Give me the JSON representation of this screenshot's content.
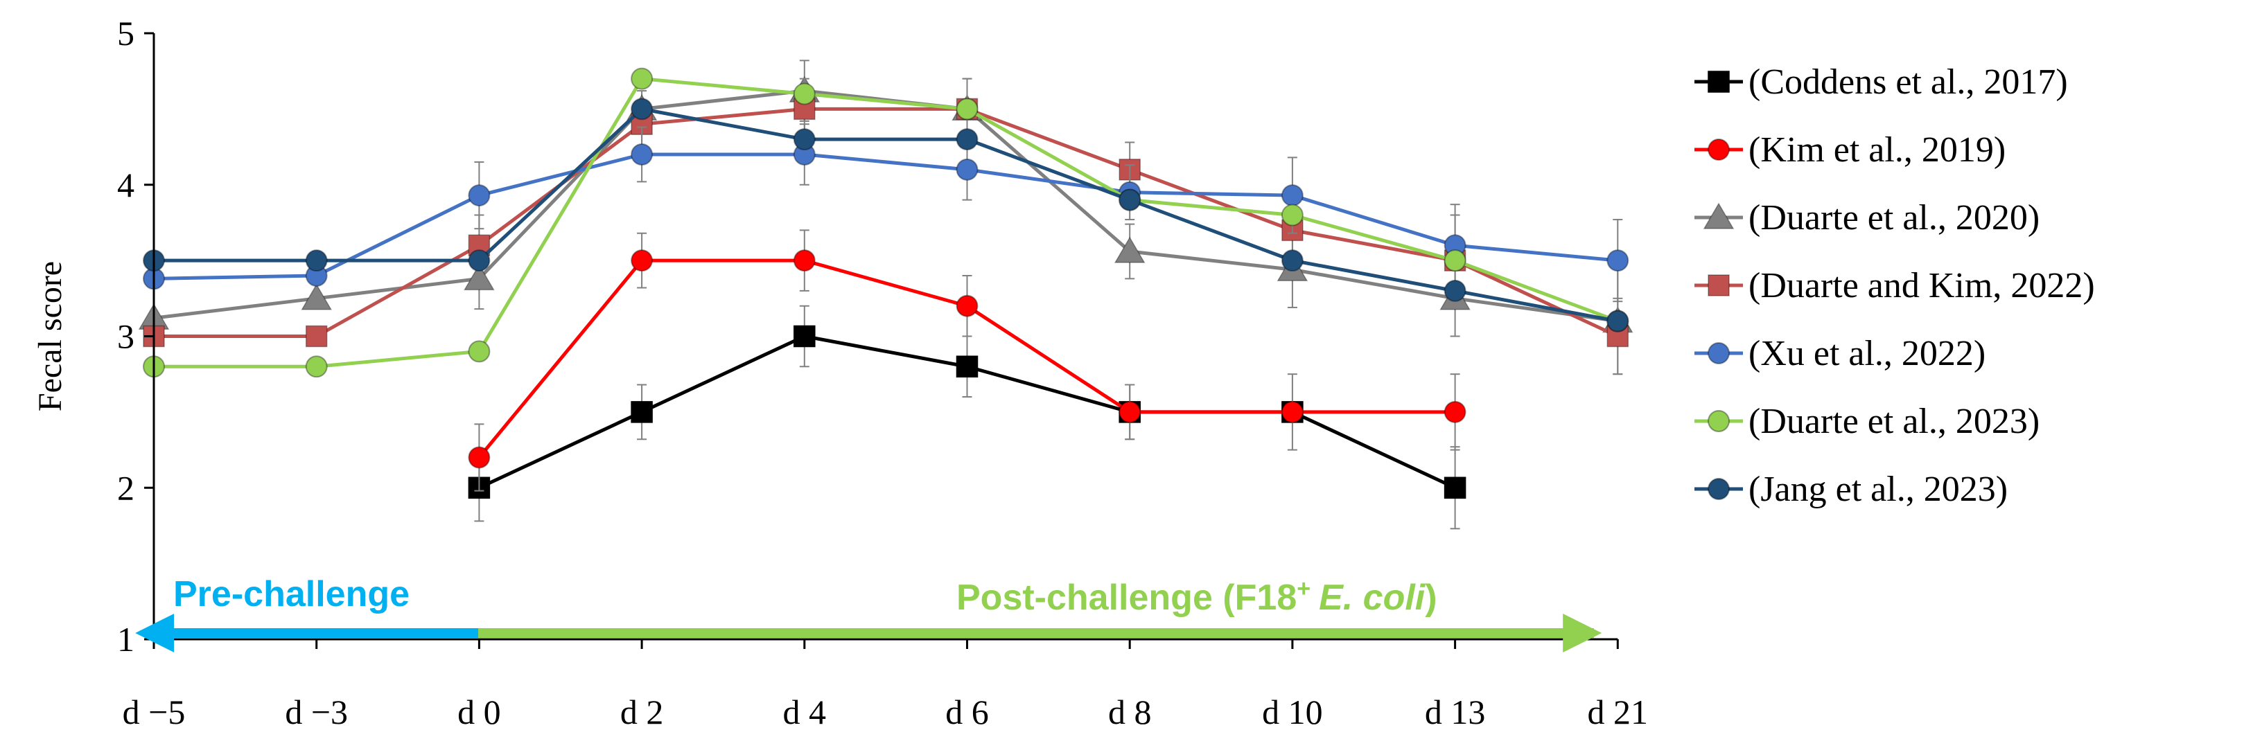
{
  "chart_data": {
    "type": "line",
    "title": "",
    "xlabel": "",
    "ylabel": "Fecal score",
    "ylim": [
      1,
      5
    ],
    "yticks": [
      "1",
      "2",
      "3",
      "4",
      "5"
    ],
    "categories": [
      "d −5",
      "d −3",
      "d 0",
      "d 2",
      "d 4",
      "d 6",
      "d 8",
      "d 10",
      "d 13",
      "d 21"
    ],
    "grid": false,
    "legend_position": "right",
    "series": [
      {
        "name": "(Coddens et al., 2017)",
        "color": "#000000",
        "marker": "square",
        "values": [
          null,
          null,
          2.0,
          2.5,
          3.0,
          2.8,
          2.5,
          2.5,
          2.0,
          null
        ],
        "errors": [
          null,
          null,
          0.22,
          0.18,
          0.2,
          0.2,
          0.18,
          null,
          0.27,
          null
        ]
      },
      {
        "name": "(Kim et al., 2019)",
        "color": "#ff0000",
        "marker": "circle",
        "values": [
          null,
          null,
          2.2,
          3.5,
          3.5,
          3.2,
          2.5,
          2.5,
          2.5,
          null
        ],
        "errors": [
          null,
          null,
          0.22,
          0.18,
          0.2,
          0.2,
          0.18,
          0.25,
          0.25,
          null
        ]
      },
      {
        "name": "(Duarte et al., 2020)",
        "color": "#808080",
        "marker": "triangle",
        "values": [
          3.12,
          3.25,
          3.38,
          4.5,
          4.62,
          4.5,
          3.56,
          3.44,
          3.25,
          3.1
        ],
        "errors": [
          null,
          null,
          0.2,
          0.12,
          0.2,
          0.2,
          0.18,
          0.25,
          0.25,
          0.35
        ]
      },
      {
        "name": "(Duarte and Kim, 2022)",
        "color": "#c0504d",
        "marker": "square",
        "values": [
          3.0,
          3.0,
          3.6,
          4.4,
          4.5,
          4.5,
          4.1,
          3.7,
          3.5,
          3.0
        ],
        "errors": [
          null,
          null,
          0.2,
          0.15,
          0.2,
          0.2,
          0.18,
          0.25,
          0.3,
          0.25
        ]
      },
      {
        "name": "(Xu et al., 2022)",
        "color": "#4472c4",
        "marker": "circle",
        "values": [
          3.38,
          3.4,
          3.93,
          4.2,
          4.2,
          4.1,
          3.95,
          3.93,
          3.6,
          3.5
        ],
        "errors": [
          null,
          null,
          0.22,
          0.18,
          0.2,
          0.2,
          0.18,
          0.25,
          0.27,
          0.27
        ]
      },
      {
        "name": "(Duarte et al., 2023)",
        "color": "#92d050",
        "marker": "circle",
        "values": [
          2.8,
          2.8,
          2.9,
          4.7,
          4.6,
          4.5,
          3.9,
          3.8,
          3.5,
          3.1
        ],
        "errors": [
          null,
          null,
          null,
          null,
          null,
          null,
          null,
          null,
          null,
          null
        ]
      },
      {
        "name": "(Jang et al., 2023)",
        "color": "#1f4e79",
        "marker": "circle",
        "values": [
          3.5,
          3.5,
          3.5,
          4.5,
          4.3,
          4.3,
          3.9,
          3.5,
          3.3,
          3.1
        ],
        "errors": [
          null,
          null,
          null,
          null,
          null,
          null,
          null,
          null,
          null,
          null
        ]
      }
    ],
    "annotations": {
      "pre_challenge": {
        "text": "Pre-challenge",
        "color": "#00b0f0"
      },
      "post_challenge": {
        "prefix": "Post-challenge (F18",
        "superscript": "+",
        "italic": "E. coli",
        "suffix": ")",
        "color": "#92d050"
      }
    }
  }
}
